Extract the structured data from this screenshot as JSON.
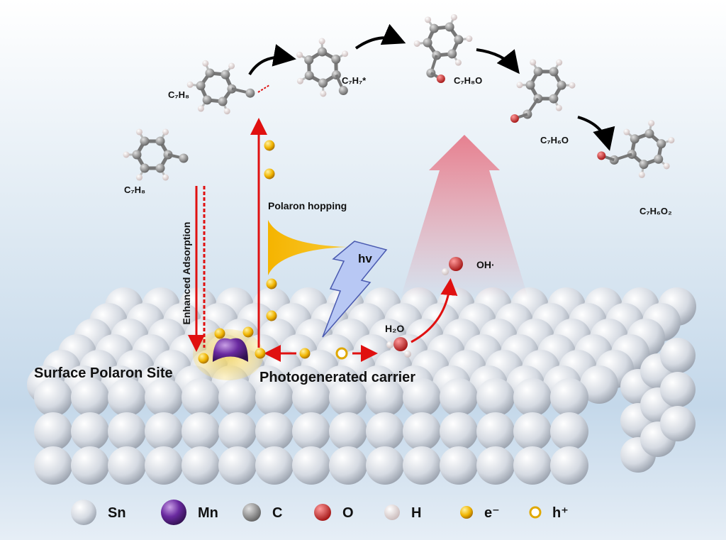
{
  "molecules": [
    {
      "label": "C₇H₈"
    },
    {
      "label": "C₇H₈"
    },
    {
      "label": "C₇H₇*"
    },
    {
      "label": "C₇H₈O"
    },
    {
      "label": "C₇H₆O"
    },
    {
      "label": "C₇H₆O₂"
    }
  ],
  "annotations": {
    "adsorption": "Enhanced  Adsorption",
    "hopping": "Polaron hopping",
    "light": "hv",
    "radical": "OH·",
    "water": "H₂O",
    "site": "Surface Polaron Site",
    "carrier": "Photogenerated carrier"
  },
  "legend": [
    {
      "label": "Sn"
    },
    {
      "label": "Mn"
    },
    {
      "label": "C"
    },
    {
      "label": "O"
    },
    {
      "label": "H"
    },
    {
      "label": "e⁻"
    },
    {
      "label": "h⁺"
    }
  ]
}
